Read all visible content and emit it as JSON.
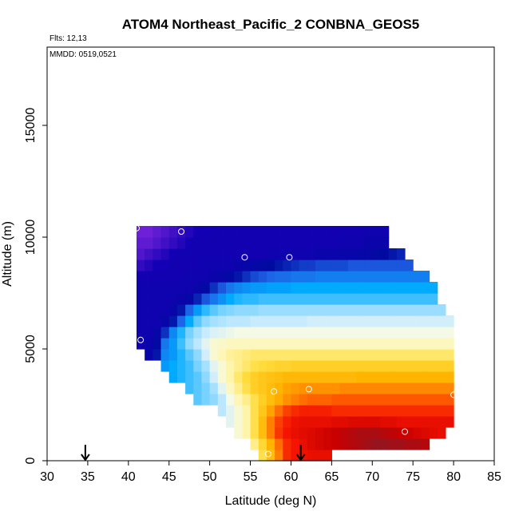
{
  "chart_data": {
    "type": "heatmap",
    "title": "ATOM4 Northeast_Pacific_2 CONBNA_GEOS5",
    "annotations": [
      "Flts: 12,13",
      "MMDD: 0519,0521"
    ],
    "xlabel": "Latitude (deg N)",
    "ylabel": "Altitude (m)",
    "xlim": [
      30,
      85
    ],
    "ylim": [
      0,
      18500
    ],
    "x_ticks": [
      30,
      35,
      40,
      45,
      50,
      55,
      60,
      65,
      70,
      75,
      80,
      85
    ],
    "y_ticks": [
      0,
      5000,
      10000,
      15000
    ],
    "grid": false,
    "legend": "none",
    "cell_size": {
      "lat_deg": 1.0,
      "alt_m": 500
    },
    "altitude_rows": [
      {
        "alt": 500,
        "lat_start": 56,
        "lat_end": 65,
        "values": [
          0.62,
          0.7,
          0.78,
          0.86,
          0.88,
          0.89,
          0.9,
          0.9,
          0.9
        ]
      },
      {
        "alt": 1000,
        "lat_start": 55,
        "lat_end": 77,
        "values": [
          0.58,
          0.64,
          0.72,
          0.8,
          0.86,
          0.88,
          0.9,
          0.92,
          0.93,
          0.94,
          0.95,
          0.96,
          0.97,
          0.98,
          0.99,
          1.0,
          1.0,
          0.99,
          0.99,
          0.98,
          0.98,
          0.97
        ]
      },
      {
        "alt": 1500,
        "lat_start": 53,
        "lat_end": 79,
        "values": [
          0.52,
          0.56,
          0.62,
          0.7,
          0.78,
          0.85,
          0.88,
          0.9,
          0.91,
          0.92,
          0.93,
          0.94,
          0.95,
          0.96,
          0.97,
          0.98,
          0.98,
          0.98,
          0.97,
          0.96,
          0.95,
          0.94,
          0.93,
          0.92,
          0.91,
          0.9
        ]
      },
      {
        "alt": 2000,
        "lat_start": 52,
        "lat_end": 80,
        "values": [
          0.48,
          0.52,
          0.56,
          0.62,
          0.7,
          0.78,
          0.84,
          0.87,
          0.89,
          0.9,
          0.9,
          0.9,
          0.9,
          0.91,
          0.91,
          0.92,
          0.92,
          0.92,
          0.92,
          0.91,
          0.91,
          0.9,
          0.9,
          0.9,
          0.9,
          0.9,
          0.9,
          0.9
        ]
      },
      {
        "alt": 2500,
        "lat_start": 51,
        "lat_end": 80,
        "values": [
          0.44,
          0.48,
          0.52,
          0.56,
          0.62,
          0.68,
          0.74,
          0.8,
          0.84,
          0.86,
          0.87,
          0.87,
          0.87,
          0.87,
          0.86,
          0.86,
          0.86,
          0.86,
          0.86,
          0.86,
          0.86,
          0.86,
          0.86,
          0.86,
          0.86,
          0.86,
          0.86,
          0.86,
          0.86
        ]
      },
      {
        "alt": 3000,
        "lat_start": 48,
        "lat_end": 80,
        "values": [
          0.36,
          0.38,
          0.4,
          0.44,
          0.5,
          0.55,
          0.58,
          0.62,
          0.66,
          0.7,
          0.73,
          0.76,
          0.78,
          0.8,
          0.81,
          0.81,
          0.81,
          0.82,
          0.82,
          0.82,
          0.82,
          0.82,
          0.82,
          0.82,
          0.82,
          0.82,
          0.82,
          0.82,
          0.82,
          0.82,
          0.82,
          0.82
        ]
      },
      {
        "alt": 3500,
        "lat_start": 47,
        "lat_end": 80,
        "values": [
          0.34,
          0.36,
          0.38,
          0.42,
          0.48,
          0.54,
          0.58,
          0.62,
          0.66,
          0.68,
          0.7,
          0.72,
          0.74,
          0.75,
          0.76,
          0.76,
          0.76,
          0.76,
          0.76,
          0.77,
          0.77,
          0.77,
          0.77,
          0.77,
          0.77,
          0.77,
          0.77,
          0.77,
          0.77,
          0.77,
          0.77,
          0.77,
          0.77
        ]
      },
      {
        "alt": 4000,
        "lat_start": 45,
        "lat_end": 80,
        "values": [
          0.3,
          0.32,
          0.34,
          0.36,
          0.4,
          0.46,
          0.52,
          0.56,
          0.6,
          0.63,
          0.66,
          0.68,
          0.69,
          0.7,
          0.71,
          0.71,
          0.71,
          0.71,
          0.71,
          0.71,
          0.71,
          0.71,
          0.71,
          0.72,
          0.72,
          0.72,
          0.72,
          0.72,
          0.72,
          0.72,
          0.72,
          0.72,
          0.72,
          0.72,
          0.72
        ]
      },
      {
        "alt": 4500,
        "lat_start": 44,
        "lat_end": 80,
        "values": [
          0.28,
          0.3,
          0.32,
          0.34,
          0.38,
          0.42,
          0.48,
          0.52,
          0.56,
          0.58,
          0.6,
          0.62,
          0.63,
          0.64,
          0.65,
          0.65,
          0.66,
          0.66,
          0.66,
          0.66,
          0.66,
          0.66,
          0.66,
          0.66,
          0.66,
          0.66,
          0.66,
          0.66,
          0.66,
          0.66,
          0.66,
          0.66,
          0.66,
          0.66,
          0.66,
          0.66
        ]
      },
      {
        "alt": 5000,
        "lat_start": 42,
        "lat_end": 80,
        "values": [
          0.12,
          0.16,
          0.26,
          0.28,
          0.32,
          0.36,
          0.4,
          0.46,
          0.52,
          0.55,
          0.57,
          0.58,
          0.59,
          0.6,
          0.6,
          0.6,
          0.6,
          0.6,
          0.6,
          0.6,
          0.6,
          0.6,
          0.6,
          0.6,
          0.6,
          0.6,
          0.6,
          0.6,
          0.6,
          0.6,
          0.6,
          0.6,
          0.6,
          0.6,
          0.6,
          0.6,
          0.6,
          0.6
        ]
      },
      {
        "alt": 5500,
        "lat_start": 41,
        "lat_end": 80,
        "values": [
          0.1,
          0.11,
          0.14,
          0.24,
          0.28,
          0.34,
          0.4,
          0.44,
          0.48,
          0.52,
          0.53,
          0.54,
          0.54,
          0.54,
          0.54,
          0.54,
          0.54,
          0.54,
          0.54,
          0.54,
          0.54,
          0.54,
          0.54,
          0.54,
          0.54,
          0.54,
          0.54,
          0.54,
          0.54,
          0.54,
          0.54,
          0.54,
          0.54,
          0.54,
          0.54,
          0.54,
          0.54,
          0.54,
          0.54
        ]
      },
      {
        "alt": 6000,
        "lat_start": 41,
        "lat_end": 80,
        "values": [
          0.1,
          0.1,
          0.12,
          0.18,
          0.26,
          0.32,
          0.38,
          0.42,
          0.45,
          0.47,
          0.48,
          0.49,
          0.5,
          0.5,
          0.5,
          0.5,
          0.5,
          0.5,
          0.5,
          0.5,
          0.5,
          0.5,
          0.5,
          0.5,
          0.5,
          0.5,
          0.5,
          0.5,
          0.5,
          0.5,
          0.5,
          0.5,
          0.5,
          0.5,
          0.5,
          0.5,
          0.5,
          0.5,
          0.5
        ]
      },
      {
        "alt": 6500,
        "lat_start": 41,
        "lat_end": 80,
        "values": [
          0.1,
          0.1,
          0.1,
          0.12,
          0.16,
          0.22,
          0.3,
          0.36,
          0.4,
          0.42,
          0.43,
          0.44,
          0.44,
          0.44,
          0.45,
          0.45,
          0.45,
          0.45,
          0.45,
          0.45,
          0.45,
          0.46,
          0.46,
          0.46,
          0.46,
          0.46,
          0.46,
          0.46,
          0.46,
          0.46,
          0.46,
          0.46,
          0.46,
          0.46,
          0.46,
          0.46,
          0.46,
          0.46,
          0.46
        ]
      },
      {
        "alt": 7000,
        "lat_start": 41,
        "lat_end": 79,
        "values": [
          0.1,
          0.1,
          0.1,
          0.1,
          0.12,
          0.16,
          0.22,
          0.28,
          0.33,
          0.36,
          0.38,
          0.39,
          0.4,
          0.4,
          0.4,
          0.41,
          0.41,
          0.41,
          0.41,
          0.41,
          0.41,
          0.41,
          0.41,
          0.41,
          0.41,
          0.41,
          0.41,
          0.41,
          0.41,
          0.41,
          0.41,
          0.41,
          0.41,
          0.41,
          0.41,
          0.41,
          0.41,
          0.41
        ]
      },
      {
        "alt": 7500,
        "lat_start": 41,
        "lat_end": 78,
        "values": [
          0.1,
          0.1,
          0.1,
          0.1,
          0.1,
          0.11,
          0.13,
          0.17,
          0.21,
          0.24,
          0.27,
          0.3,
          0.32,
          0.33,
          0.33,
          0.34,
          0.34,
          0.34,
          0.34,
          0.34,
          0.34,
          0.34,
          0.34,
          0.34,
          0.34,
          0.34,
          0.34,
          0.34,
          0.34,
          0.34,
          0.34,
          0.34,
          0.34,
          0.34,
          0.34,
          0.34,
          0.34
        ]
      },
      {
        "alt": 8000,
        "lat_start": 41,
        "lat_end": 78,
        "values": [
          0.1,
          0.1,
          0.1,
          0.1,
          0.1,
          0.1,
          0.1,
          0.12,
          0.14,
          0.18,
          0.21,
          0.24,
          0.26,
          0.27,
          0.28,
          0.28,
          0.29,
          0.29,
          0.29,
          0.3,
          0.3,
          0.3,
          0.3,
          0.3,
          0.3,
          0.3,
          0.3,
          0.3,
          0.3,
          0.3,
          0.3,
          0.3,
          0.3,
          0.3,
          0.3,
          0.3,
          0.3
        ]
      },
      {
        "alt": 8500,
        "lat_start": 41,
        "lat_end": 77,
        "values": [
          0.09,
          0.09,
          0.09,
          0.09,
          0.09,
          0.09,
          0.1,
          0.1,
          0.1,
          0.11,
          0.12,
          0.14,
          0.16,
          0.18,
          0.2,
          0.21,
          0.22,
          0.23,
          0.23,
          0.24,
          0.24,
          0.24,
          0.25,
          0.25,
          0.25,
          0.25,
          0.25,
          0.25,
          0.25,
          0.25,
          0.25,
          0.25,
          0.25,
          0.25,
          0.25,
          0.25
        ]
      },
      {
        "alt": 9000,
        "lat_start": 41,
        "lat_end": 75,
        "values": [
          0.06,
          0.07,
          0.08,
          0.08,
          0.09,
          0.09,
          0.09,
          0.09,
          0.1,
          0.1,
          0.1,
          0.1,
          0.11,
          0.12,
          0.13,
          0.14,
          0.15,
          0.16,
          0.17,
          0.18,
          0.19,
          0.19,
          0.2,
          0.2,
          0.2,
          0.2,
          0.21,
          0.21,
          0.21,
          0.21,
          0.21,
          0.21,
          0.21,
          0.21
        ]
      },
      {
        "alt": 9500,
        "lat_start": 41,
        "lat_end": 74,
        "values": [
          0.04,
          0.05,
          0.06,
          0.07,
          0.08,
          0.09,
          0.09,
          0.09,
          0.09,
          0.09,
          0.09,
          0.09,
          0.09,
          0.09,
          0.09,
          0.09,
          0.1,
          0.1,
          0.1,
          0.1,
          0.1,
          0.1,
          0.11,
          0.11,
          0.11,
          0.12,
          0.12,
          0.13,
          0.13,
          0.14,
          0.15,
          0.16,
          0.17
        ]
      },
      {
        "alt": 10000,
        "lat_start": 41,
        "lat_end": 72,
        "values": [
          0.03,
          0.03,
          0.04,
          0.05,
          0.06,
          0.07,
          0.08,
          0.09,
          0.09,
          0.09,
          0.09,
          0.09,
          0.09,
          0.09,
          0.09,
          0.09,
          0.09,
          0.09,
          0.09,
          0.09,
          0.09,
          0.09,
          0.09,
          0.09,
          0.09,
          0.1,
          0.1,
          0.1,
          0.11,
          0.11,
          0.11
        ]
      },
      {
        "alt": 10500,
        "lat_start": 41,
        "lat_end": 72,
        "values": [
          0.02,
          0.02,
          0.03,
          0.04,
          0.05,
          0.06,
          0.07,
          0.08,
          0.08,
          0.09,
          0.09,
          0.09,
          0.09,
          0.09,
          0.09,
          0.09,
          0.09,
          0.09,
          0.09,
          0.09,
          0.09,
          0.09,
          0.09,
          0.09,
          0.09,
          0.09,
          0.09,
          0.09,
          0.1,
          0.1,
          0.1
        ]
      }
    ],
    "sample_points": [
      {
        "lat": 41.0,
        "alt": 10400
      },
      {
        "lat": 46.5,
        "alt": 10250
      },
      {
        "lat": 54.3,
        "alt": 9100
      },
      {
        "lat": 59.8,
        "alt": 9100
      },
      {
        "lat": 69.8,
        "alt": 10800
      },
      {
        "lat": 76.8,
        "alt": 8900
      },
      {
        "lat": 41.5,
        "alt": 5400
      },
      {
        "lat": 57.9,
        "alt": 3100
      },
      {
        "lat": 62.2,
        "alt": 3200
      },
      {
        "lat": 80.0,
        "alt": 2950
      },
      {
        "lat": 74.0,
        "alt": 1300
      },
      {
        "lat": 57.2,
        "alt": 300
      }
    ],
    "arrows": [
      {
        "lat": 34.7
      },
      {
        "lat": 61.2
      }
    ]
  }
}
